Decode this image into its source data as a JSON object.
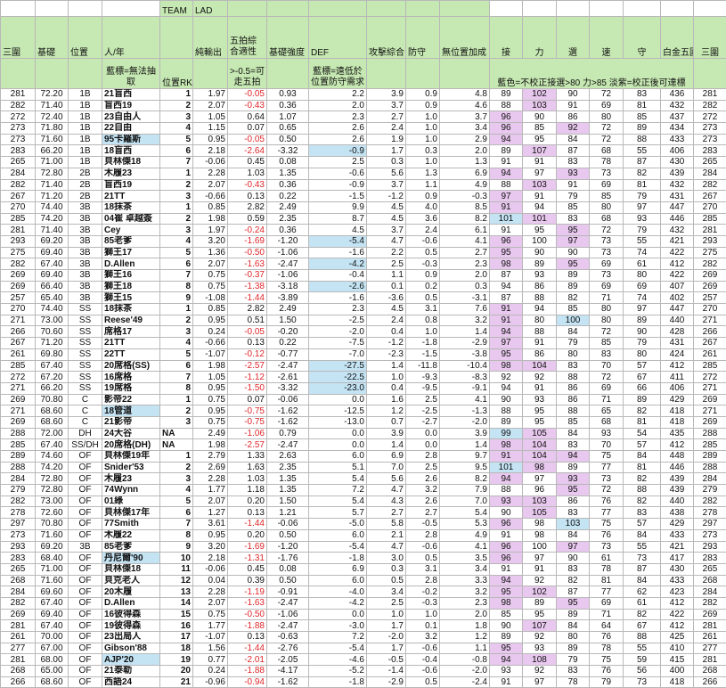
{
  "top_row": {
    "team_label": "TEAM",
    "team_value": "LAD"
  },
  "headers": [
    "三圍",
    "基礎",
    "位置",
    "人/年",
    "",
    "純輸出",
    "五拍綜合適性",
    "基礎強度",
    "DEF",
    "攻擊綜合",
    "防守",
    "無位置加成",
    "接",
    "力",
    "選",
    "速",
    "守",
    "白金五圍",
    "三圍"
  ],
  "notes": {
    "name_note": "藍標=無法抽取",
    "rank_label": "位置RK",
    "wupai_note": ">-0.5=可走五拍",
    "def_note": "藍標=遠低於位置防守需求",
    "color_note": "藍色=不校正接選>80 力>85 淡紫=校正後可達標"
  },
  "colors": {
    "header_green": "#c6e8b2",
    "pink": "#e8c8ee",
    "blue": "#c4e4f4",
    "negative_red": "#e0262a"
  },
  "rows": [
    {
      "v": [
        "281",
        "72.20",
        "1B",
        "21盲西",
        "1",
        "1.97",
        "-0.05",
        "0.93",
        "2.2",
        "3.9",
        "0.9",
        "4.8",
        "89",
        "102",
        "90",
        "72",
        "83",
        "436",
        "281"
      ],
      "hl": "-p--"
    },
    {
      "v": [
        "282",
        "71.40",
        "1B",
        "盲西19",
        "2",
        "2.07",
        "-0.43",
        "0.36",
        "2.0",
        "3.7",
        "0.9",
        "4.6",
        "88",
        "103",
        "91",
        "69",
        "81",
        "432",
        "282"
      ],
      "hl": "-p--"
    },
    {
      "v": [
        "272",
        "72.40",
        "1B",
        "23自由人",
        "3",
        "1.05",
        "0.64",
        "1.07",
        "2.3",
        "2.7",
        "1.0",
        "3.7",
        "96",
        "90",
        "86",
        "80",
        "85",
        "437",
        "272"
      ],
      "hl": "p---"
    },
    {
      "v": [
        "273",
        "71.80",
        "1B",
        "22自由",
        "4",
        "1.15",
        "0.07",
        "0.65",
        "2.6",
        "2.4",
        "1.0",
        "3.4",
        "96",
        "85",
        "92",
        "72",
        "89",
        "434",
        "273"
      ],
      "hl": "p-p-"
    },
    {
      "v": [
        "273",
        "71.60",
        "1B",
        "95卡羅斯",
        "5",
        "0.95",
        "-0.05",
        "0.50",
        "2.6",
        "1.9",
        "1.0",
        "2.9",
        "94",
        "95",
        "84",
        "72",
        "88",
        "433",
        "273"
      ],
      "hl": "p---",
      "name_blue": true
    },
    {
      "v": [
        "283",
        "66.20",
        "1B",
        "18盲西",
        "6",
        "2.18",
        "-2.64",
        "-3.32",
        "-0.9",
        "1.7",
        "0.3",
        "2.0",
        "89",
        "107",
        "87",
        "68",
        "55",
        "406",
        "283"
      ],
      "hl": "-p--",
      "def_blue": true
    },
    {
      "v": [
        "265",
        "71.00",
        "1B",
        "貝林傑18",
        "7",
        "-0.06",
        "0.45",
        "0.08",
        "2.5",
        "0.3",
        "1.0",
        "1.3",
        "91",
        "91",
        "83",
        "78",
        "87",
        "430",
        "265"
      ],
      "hl": "----"
    },
    {
      "v": [
        "284",
        "72.80",
        "2B",
        "木履23",
        "1",
        "2.28",
        "1.03",
        "1.35",
        "-0.6",
        "5.6",
        "1.3",
        "6.9",
        "94",
        "97",
        "93",
        "73",
        "82",
        "439",
        "284"
      ],
      "hl": "p-p-"
    },
    {
      "v": [
        "282",
        "71.40",
        "2B",
        "盲西19",
        "2",
        "2.07",
        "-0.43",
        "0.36",
        "-0.9",
        "3.7",
        "1.1",
        "4.9",
        "88",
        "103",
        "91",
        "69",
        "81",
        "432",
        "282"
      ],
      "hl": "-p--"
    },
    {
      "v": [
        "267",
        "71.20",
        "2B",
        "21TT",
        "3",
        "-0.66",
        "0.13",
        "0.22",
        "-1.5",
        "-1.2",
        "0.9",
        "-0.3",
        "97",
        "91",
        "79",
        "85",
        "79",
        "431",
        "267"
      ],
      "hl": "p---"
    },
    {
      "v": [
        "270",
        "74.40",
        "3B",
        "18抹茶",
        "1",
        "0.85",
        "2.82",
        "2.49",
        "9.9",
        "4.5",
        "4.0",
        "8.5",
        "91",
        "94",
        "85",
        "80",
        "97",
        "447",
        "270"
      ],
      "hl": "p---"
    },
    {
      "v": [
        "285",
        "74.20",
        "3B",
        "04崔 卓越簽",
        "2",
        "1.98",
        "0.59",
        "2.35",
        "8.7",
        "4.5",
        "3.6",
        "8.2",
        "101",
        "101",
        "83",
        "68",
        "93",
        "446",
        "285"
      ],
      "hl": "bp--"
    },
    {
      "v": [
        "281",
        "71.40",
        "3B",
        "Cey",
        "3",
        "1.97",
        "-0.24",
        "0.36",
        "4.5",
        "3.7",
        "2.4",
        "6.1",
        "91",
        "95",
        "95",
        "72",
        "79",
        "432",
        "281"
      ],
      "hl": "--p-"
    },
    {
      "v": [
        "293",
        "69.20",
        "3B",
        "85老爹",
        "4",
        "3.20",
        "-1.69",
        "-1.20",
        "-5.4",
        "4.7",
        "-0.6",
        "4.1",
        "96",
        "100",
        "97",
        "73",
        "55",
        "421",
        "293"
      ],
      "hl": "p-p-",
      "def_blue": true
    },
    {
      "v": [
        "275",
        "69.40",
        "3B",
        "獅王17",
        "5",
        "1.36",
        "-0.50",
        "-1.06",
        "-1.6",
        "2.2",
        "0.5",
        "2.7",
        "95",
        "90",
        "90",
        "73",
        "74",
        "422",
        "275"
      ],
      "hl": "p---"
    },
    {
      "v": [
        "282",
        "67.40",
        "3B",
        "D.Allen",
        "6",
        "2.07",
        "-1.63",
        "-2.47",
        "-4.2",
        "2.5",
        "-0.3",
        "2.3",
        "98",
        "89",
        "95",
        "69",
        "61",
        "412",
        "282"
      ],
      "hl": "p-p-",
      "def_blue": true
    },
    {
      "v": [
        "269",
        "69.40",
        "3B",
        "獅王16",
        "7",
        "0.75",
        "-0.37",
        "-1.06",
        "-0.4",
        "1.1",
        "0.9",
        "2.0",
        "87",
        "93",
        "89",
        "73",
        "80",
        "422",
        "269"
      ],
      "hl": "----"
    },
    {
      "v": [
        "269",
        "66.40",
        "3B",
        "獅王18",
        "8",
        "0.75",
        "-1.38",
        "-3.18",
        "-2.6",
        "0.1",
        "0.2",
        "0.3",
        "94",
        "86",
        "89",
        "69",
        "69",
        "407",
        "269"
      ],
      "hl": "----",
      "def_blue": true
    },
    {
      "v": [
        "257",
        "65.40",
        "3B",
        "獅王15",
        "9",
        "-1.08",
        "-1.44",
        "-3.89",
        "-1.6",
        "-3.6",
        "0.5",
        "-3.1",
        "87",
        "88",
        "82",
        "71",
        "74",
        "402",
        "257"
      ],
      "hl": "----"
    },
    {
      "v": [
        "270",
        "74.40",
        "SS",
        "18抹茶",
        "1",
        "0.85",
        "2.82",
        "2.49",
        "2.3",
        "4.5",
        "3.1",
        "7.6",
        "91",
        "94",
        "85",
        "80",
        "97",
        "447",
        "270"
      ],
      "hl": "p---"
    },
    {
      "v": [
        "271",
        "73.00",
        "SS",
        "Reese'49",
        "2",
        "0.95",
        "0.51",
        "1.50",
        "-2.5",
        "2.4",
        "0.8",
        "3.2",
        "91",
        "80",
        "100",
        "80",
        "89",
        "440",
        "271"
      ],
      "hl": "p-b-"
    },
    {
      "v": [
        "266",
        "70.60",
        "SS",
        "席格17",
        "3",
        "0.24",
        "-0.05",
        "-0.20",
        "-2.0",
        "0.4",
        "1.0",
        "1.4",
        "94",
        "88",
        "84",
        "72",
        "90",
        "428",
        "266"
      ],
      "hl": "p---"
    },
    {
      "v": [
        "267",
        "71.20",
        "SS",
        "21TT",
        "4",
        "-0.66",
        "0.13",
        "0.22",
        "-7.5",
        "-1.2",
        "-1.8",
        "-2.9",
        "97",
        "91",
        "79",
        "85",
        "79",
        "431",
        "267"
      ],
      "hl": "p---"
    },
    {
      "v": [
        "261",
        "69.80",
        "SS",
        "22TT",
        "5",
        "-1.07",
        "-0.12",
        "-0.77",
        "-7.0",
        "-2.3",
        "-1.5",
        "-3.8",
        "95",
        "86",
        "80",
        "83",
        "80",
        "424",
        "261"
      ],
      "hl": "p---"
    },
    {
      "v": [
        "285",
        "67.40",
        "SS",
        "20席格(SS)",
        "6",
        "1.98",
        "-2.57",
        "-2.47",
        "-27.5",
        "1.4",
        "-11.8",
        "-10.4",
        "98",
        "104",
        "83",
        "70",
        "57",
        "412",
        "285"
      ],
      "hl": "pp--",
      "def_blue": true
    },
    {
      "v": [
        "272",
        "67.20",
        "SS",
        "16席格",
        "7",
        "1.05",
        "-1.12",
        "-2.61",
        "-22.5",
        "1.0",
        "-9.3",
        "-8.3",
        "92",
        "92",
        "88",
        "72",
        "67",
        "411",
        "272"
      ],
      "hl": "----",
      "def_blue": true
    },
    {
      "v": [
        "271",
        "66.20",
        "SS",
        "19席格",
        "8",
        "0.95",
        "-1.50",
        "-3.32",
        "-23.0",
        "0.4",
        "-9.5",
        "-9.1",
        "94",
        "91",
        "86",
        "69",
        "66",
        "406",
        "271"
      ],
      "hl": "----",
      "def_blue": true
    },
    {
      "v": [
        "269",
        "70.80",
        "C",
        "影帝22",
        "1",
        "0.75",
        "0.07",
        "-0.06",
        "0.0",
        "1.6",
        "2.5",
        "4.1",
        "90",
        "93",
        "86",
        "71",
        "89",
        "429",
        "269"
      ],
      "hl": "----"
    },
    {
      "v": [
        "271",
        "68.60",
        "C",
        "18管道",
        "2",
        "0.95",
        "-0.75",
        "-1.62",
        "-12.5",
        "1.2",
        "-2.5",
        "-1.3",
        "88",
        "95",
        "88",
        "65",
        "82",
        "418",
        "271"
      ],
      "hl": "----",
      "name_blue": true
    },
    {
      "v": [
        "269",
        "68.60",
        "C",
        "21影帝",
        "3",
        "0.75",
        "-0.75",
        "-1.62",
        "-13.0",
        "0.7",
        "-2.7",
        "-2.0",
        "89",
        "95",
        "85",
        "68",
        "81",
        "418",
        "269"
      ],
      "hl": "----"
    },
    {
      "v": [
        "288",
        "72.00",
        "DH",
        "24大谷",
        "NA",
        "2.49",
        "-1.06",
        "0.79",
        "0.0",
        "3.9",
        "0.0",
        "3.9",
        "99",
        "105",
        "84",
        "93",
        "54",
        "435",
        "288"
      ],
      "hl": "bp--"
    },
    {
      "v": [
        "285",
        "67.40",
        "SS/DH",
        "20席格(DH)",
        "NA",
        "1.98",
        "-2.57",
        "-2.47",
        "0.0",
        "1.4",
        "0.0",
        "1.4",
        "98",
        "104",
        "83",
        "70",
        "57",
        "412",
        "285"
      ],
      "hl": "pp--"
    },
    {
      "v": [
        "289",
        "74.60",
        "OF",
        "貝林傑19年",
        "1",
        "2.79",
        "1.33",
        "2.63",
        "6.0",
        "6.9",
        "2.8",
        "9.7",
        "91",
        "104",
        "94",
        "75",
        "84",
        "448",
        "289"
      ],
      "hl": "ppp-"
    },
    {
      "v": [
        "288",
        "74.20",
        "OF",
        "Snider'53",
        "2",
        "2.69",
        "1.63",
        "2.35",
        "5.1",
        "7.0",
        "2.5",
        "9.5",
        "101",
        "98",
        "89",
        "77",
        "81",
        "446",
        "288"
      ],
      "hl": "bp--"
    },
    {
      "v": [
        "284",
        "72.80",
        "OF",
        "木履23",
        "3",
        "2.28",
        "1.03",
        "1.35",
        "5.4",
        "5.6",
        "2.6",
        "8.2",
        "94",
        "97",
        "93",
        "73",
        "82",
        "439",
        "284"
      ],
      "hl": "p-p-"
    },
    {
      "v": [
        "279",
        "72.80",
        "OF",
        "74Wynn",
        "4",
        "1.77",
        "1.18",
        "1.35",
        "7.2",
        "4.7",
        "3.2",
        "7.9",
        "88",
        "96",
        "95",
        "72",
        "88",
        "439",
        "279"
      ],
      "hl": "--p-"
    },
    {
      "v": [
        "282",
        "73.00",
        "OF",
        "01綠",
        "5",
        "2.07",
        "0.20",
        "1.50",
        "5.4",
        "4.3",
        "2.6",
        "7.0",
        "93",
        "103",
        "86",
        "76",
        "82",
        "440",
        "282"
      ],
      "hl": "pp--"
    },
    {
      "v": [
        "278",
        "72.60",
        "OF",
        "貝林傑17年",
        "6",
        "1.27",
        "0.13",
        "1.21",
        "5.7",
        "2.7",
        "2.7",
        "5.4",
        "90",
        "105",
        "83",
        "77",
        "83",
        "438",
        "278"
      ],
      "hl": "-p--"
    },
    {
      "v": [
        "297",
        "70.80",
        "OF",
        "77Smith",
        "7",
        "3.61",
        "-1.44",
        "-0.06",
        "-5.0",
        "5.8",
        "-0.5",
        "5.3",
        "96",
        "98",
        "103",
        "75",
        "57",
        "429",
        "297"
      ],
      "hl": "p-b-"
    },
    {
      "v": [
        "273",
        "71.60",
        "OF",
        "木履22",
        "8",
        "0.95",
        "0.20",
        "0.50",
        "6.0",
        "2.1",
        "2.8",
        "4.9",
        "91",
        "98",
        "84",
        "76",
        "84",
        "433",
        "273"
      ],
      "hl": "----"
    },
    {
      "v": [
        "293",
        "69.20",
        "3B",
        "85老爹",
        "9",
        "3.20",
        "-1.69",
        "-1.20",
        "-5.4",
        "4.7",
        "-0.6",
        "4.1",
        "96",
        "100",
        "97",
        "73",
        "55",
        "421",
        "293"
      ],
      "hl": "p-p-"
    },
    {
      "v": [
        "283",
        "68.40",
        "OF",
        "丹尼爾'90",
        "10",
        "2.18",
        "-1.31",
        "-1.76",
        "-1.8",
        "3.0",
        "0.5",
        "3.5",
        "96",
        "97",
        "90",
        "61",
        "73",
        "417",
        "283"
      ],
      "hl": "p---",
      "name_blue": true
    },
    {
      "v": [
        "265",
        "71.00",
        "OF",
        "貝林傑18",
        "11",
        "-0.06",
        "0.45",
        "0.08",
        "6.9",
        "0.3",
        "3.1",
        "3.4",
        "91",
        "91",
        "83",
        "78",
        "87",
        "430",
        "265"
      ],
      "hl": "----"
    },
    {
      "v": [
        "268",
        "71.60",
        "OF",
        "貝克老人",
        "12",
        "0.04",
        "0.39",
        "0.50",
        "6.0",
        "0.5",
        "2.8",
        "3.3",
        "94",
        "92",
        "82",
        "81",
        "84",
        "433",
        "268"
      ],
      "hl": "p---"
    },
    {
      "v": [
        "284",
        "69.60",
        "OF",
        "20木履",
        "13",
        "2.28",
        "-1.19",
        "-0.91",
        "-4.0",
        "3.4",
        "-0.2",
        "3.2",
        "95",
        "102",
        "87",
        "77",
        "62",
        "423",
        "284"
      ],
      "hl": "pp--"
    },
    {
      "v": [
        "282",
        "67.40",
        "OF",
        "D.Allen",
        "14",
        "2.07",
        "-1.63",
        "-2.47",
        "-4.2",
        "2.5",
        "-0.3",
        "2.3",
        "98",
        "89",
        "95",
        "69",
        "61",
        "412",
        "282"
      ],
      "hl": "p-p-"
    },
    {
      "v": [
        "269",
        "69.40",
        "OF",
        "16彼得森",
        "15",
        "0.75",
        "-0.50",
        "-1.06",
        "0.0",
        "1.0",
        "1.0",
        "2.0",
        "85",
        "95",
        "89",
        "71",
        "82",
        "422",
        "269"
      ],
      "hl": "----"
    },
    {
      "v": [
        "281",
        "67.40",
        "OF",
        "19彼得森",
        "16",
        "1.77",
        "-1.88",
        "-2.47",
        "-3.0",
        "1.7",
        "0.1",
        "1.8",
        "90",
        "107",
        "84",
        "64",
        "67",
        "412",
        "281"
      ],
      "hl": "-p--"
    },
    {
      "v": [
        "261",
        "70.00",
        "OF",
        "23出局人",
        "17",
        "-1.07",
        "0.13",
        "-0.63",
        "7.2",
        "-2.0",
        "3.2",
        "1.2",
        "89",
        "92",
        "80",
        "76",
        "88",
        "425",
        "261"
      ],
      "hl": "----"
    },
    {
      "v": [
        "277",
        "67.00",
        "OF",
        "Gibson'88",
        "18",
        "1.56",
        "-1.44",
        "-2.76",
        "-5.4",
        "1.7",
        "-0.6",
        "1.1",
        "95",
        "93",
        "89",
        "78",
        "55",
        "410",
        "277"
      ],
      "hl": "p---"
    },
    {
      "v": [
        "281",
        "68.00",
        "OF",
        "AJP'20",
        "19",
        "0.77",
        "-2.01",
        "-2.05",
        "-4.6",
        "-0.5",
        "-0.4",
        "-0.8",
        "94",
        "108",
        "79",
        "75",
        "59",
        "415",
        "281"
      ],
      "hl": "pp--",
      "name_blue": true
    },
    {
      "v": [
        "268",
        "65.00",
        "OF",
        "21泰勒",
        "20",
        "0.24",
        "-1.88",
        "-4.17",
        "-5.2",
        "-1.4",
        "-0.6",
        "-2.0",
        "93",
        "92",
        "83",
        "76",
        "56",
        "400",
        "268"
      ],
      "hl": "----"
    },
    {
      "v": [
        "266",
        "68.60",
        "OF",
        "西語24",
        "21",
        "-0.96",
        "-0.94",
        "-1.62",
        "-1.8",
        "-2.9",
        "0.5",
        "-2.4",
        "91",
        "97",
        "78",
        "79",
        "73",
        "418",
        "266"
      ],
      "hl": "----"
    }
  ]
}
